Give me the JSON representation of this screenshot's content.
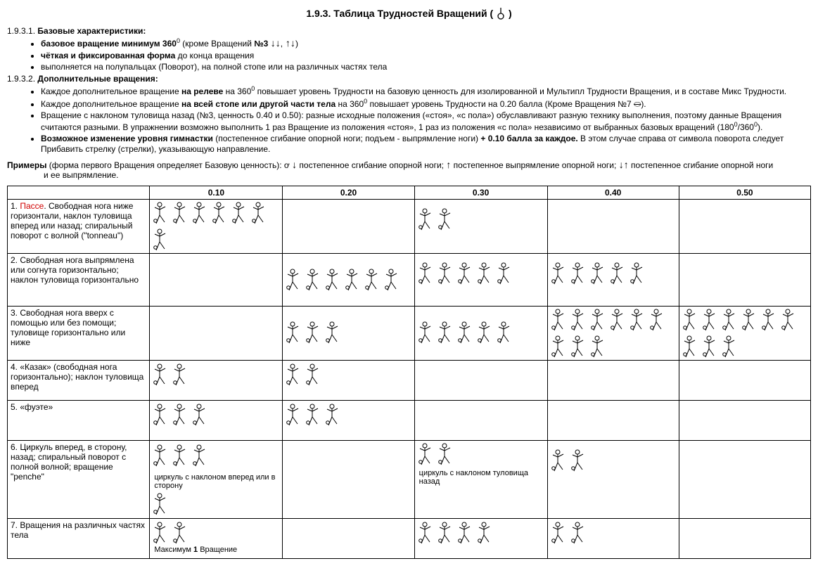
{
  "title_prefix": "1.9.3. ",
  "title_main": "Таблица Трудностей Вращений",
  "title_paren_open": " (",
  "title_paren_close": " )",
  "sec1_num": "1.9.3.1. ",
  "sec1_label": "Базовые характеристики:",
  "sec1_b1_bold": "базовое вращение минимум 360",
  "sec1_b1_tail": " (кроме Вращений ",
  "sec1_b1_no3": "№3",
  "sec1_b1_close": ")",
  "sec1_b2_bold": "чёткая и фиксированная форма",
  "sec1_b2_tail": " до конца вращения",
  "sec1_b3": "выполняется на полупальцах (Поворот), на полной стопе или на различных частях тела",
  "sec2_num": "1.9.3.2. ",
  "sec2_label": "Дополнительные вращения:",
  "sec2_b1_a": "Каждое дополнительное вращение ",
  "sec2_b1_bold": "на релеве",
  "sec2_b1_b": " на 360",
  "sec2_b1_c": " повышает уровень Трудности на базовую ценность для изолированной и Мультипл Трудности Вращения, и в составе Микс Трудности.",
  "sec2_b2_a": "Каждое дополнительное вращение ",
  "sec2_b2_bold": "на всей стопе или другой части тела",
  "sec2_b2_b": " на 360",
  "sec2_b2_c": " повышает уровень Трудности на 0.20 балла (Кроме Вращения №7 ",
  "sec2_b2_d": ").",
  "sec2_b3": "Вращение с наклоном туловища назад (№3, ценность 0.40 и 0.50): разные исходные положения («стоя», «с пола») обуславливают разную технику выполнения, поэтому данные Вращения считаются разными. В упражнении возможно выполнить 1 раз Вращение из положения «стоя», 1 раз из положения «с пола» независимо  от выбранных базовых вращений (180",
  "sec2_b3_tail": "/360",
  "sec2_b3_end": ").",
  "sec2_b4_bold": "Возможное изменение уровня гимнастки",
  "sec2_b4_a": " (постепенное сгибание опорной ноги; подъем - выпрямление ноги) ",
  "sec2_b4_bold2": "+ 0.10 балла за каждое.",
  "sec2_b4_b": " В этом случае справа от символа поворота следует Прибавить стрелку (стрелки), указывающую направление.",
  "ex_label": "Примеры",
  "ex_a": " (форма первого Вращения определяет Базовую ценность): ",
  "ex_t1": " постепенное сгибание опорной ноги; ",
  "ex_t2": " постепенное выпрямление опорной ноги; ",
  "ex_t3": " постепенное сгибание опорной ноги",
  "ex_t4": "и ее выпрямление.",
  "hdr": [
    "0.10",
    "0.20",
    "0.30",
    "0.40",
    "0.50"
  ],
  "rows": [
    {
      "n": "1. ",
      "red": "Пассе",
      "rest": ". Свободная нога ниже горизонтали, наклон туловища вперед или назад; спиральный поворот с волной (\"tonneau\")",
      "cells": [
        {
          "g": 7,
          "h": "tall"
        },
        {
          "g": 0
        },
        {
          "g": 2
        },
        {
          "g": 0
        },
        {
          "g": 0
        }
      ]
    },
    {
      "n": "2. ",
      "rest": "Свободная нога выпрямлена или согнута горизонтально; наклон туловища горизонтально",
      "cells": [
        {
          "g": 0
        },
        {
          "g": 6,
          "h": "tall"
        },
        {
          "g": 5
        },
        {
          "g": 5
        },
        {
          "g": 0
        }
      ]
    },
    {
      "n": "3. ",
      "rest": "Свободная нога вверх с помощью или без помощи;\nтуловище горизонтально или ниже",
      "cells": [
        {
          "g": 0
        },
        {
          "g": 3,
          "h": "tall"
        },
        {
          "g": 5,
          "h": "tall"
        },
        {
          "g": 9,
          "h": "tall"
        },
        {
          "g": 9,
          "h": "tall"
        }
      ]
    },
    {
      "n": "4. ",
      "rest": "«Казак» (свободная нога горизонтально); наклон туловища вперед",
      "cells": [
        {
          "g": 2,
          "h": "short"
        },
        {
          "g": 2,
          "h": "short"
        },
        {
          "g": 0
        },
        {
          "g": 0
        },
        {
          "g": 0
        }
      ]
    },
    {
      "n": "5. ",
      "rest": "«фуэте»",
      "cells": [
        {
          "g": 3,
          "h": "short"
        },
        {
          "g": 3,
          "h": "short"
        },
        {
          "g": 0
        },
        {
          "g": 0
        },
        {
          "g": 0
        }
      ]
    },
    {
      "n": "6. ",
      "rest": "Циркуль вперед, в сторону, назад; спиральный поворот с полной волной; вращение \"penche\"",
      "cells": [
        {
          "g": 3,
          "h": "tall",
          "cap": " циркуль с наклоном вперед или в сторону",
          "below": 1
        },
        {
          "g": 0
        },
        {
          "g": 2,
          "cap": " циркуль с наклоном туловища назад"
        },
        {
          "g": 2
        },
        {
          "g": 0
        }
      ]
    },
    {
      "n": "7. ",
      "rest": "Вращения на различных частях тела",
      "cells": [
        {
          "g": 2,
          "h": "short",
          "cap2": "Максимум 1 Вращение"
        },
        {
          "g": 0
        },
        {
          "g": 4,
          "h": "short"
        },
        {
          "g": 2,
          "h": "short"
        },
        {
          "g": 0
        }
      ]
    }
  ]
}
